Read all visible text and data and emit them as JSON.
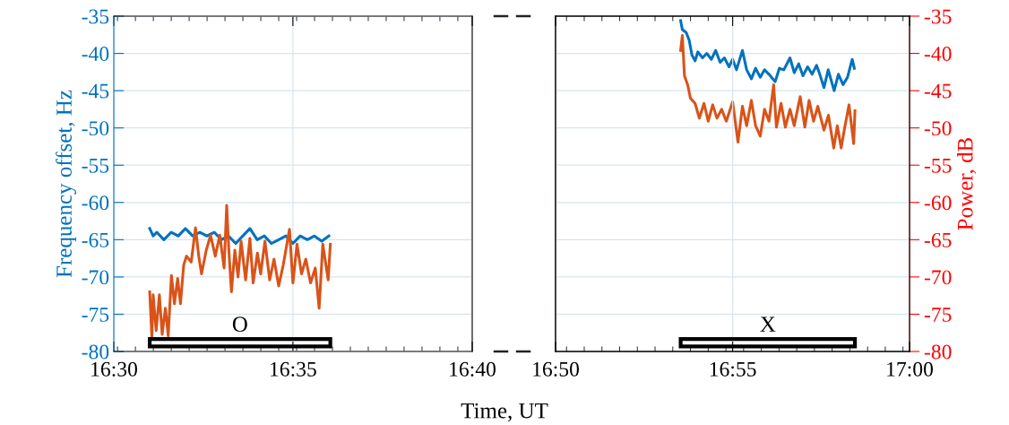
{
  "chart_data": [
    {
      "type": "line",
      "ylabel": "Frequency offset, Hz",
      "xlabel": "Time, UT",
      "xlim": [
        16.5,
        16.6667
      ],
      "xticks": [
        {
          "value": 16.5,
          "label": "16:30"
        },
        {
          "value": 16.5833,
          "label": "16:35"
        },
        {
          "value": 16.6667,
          "label": "16:40"
        }
      ],
      "ylim": [
        -80,
        -35
      ],
      "yticks": [
        -80,
        -75,
        -70,
        -65,
        -60,
        -55,
        -50,
        -45,
        -40,
        -35
      ],
      "grid": true,
      "line_style": "solid",
      "annotations": [
        "O"
      ],
      "series": [
        {
          "color": "#0072bd",
          "x": [
            16.5167,
            16.5183,
            16.52,
            16.5233,
            16.5267,
            16.53,
            16.5333,
            16.5367,
            16.54,
            16.5433,
            16.5467,
            16.55,
            16.5533,
            16.5567,
            16.56,
            16.5633,
            16.5667,
            16.57,
            16.5733,
            16.5767,
            16.58,
            16.5833,
            16.5867,
            16.59,
            16.5933,
            16.5967,
            16.6
          ],
          "values": [
            -63.5,
            -64.5,
            -64,
            -65,
            -64,
            -64.5,
            -63.5,
            -64.5,
            -64,
            -64.5,
            -64,
            -65,
            -64.5,
            -65.5,
            -64.5,
            -63.5,
            -65,
            -64.5,
            -65.5,
            -65,
            -64.5,
            -65.5,
            -64.5,
            -65,
            -64.5,
            -65.2,
            -64.5
          ]
        },
        {
          "color": "#d95319",
          "x": [
            16.5167,
            16.5177,
            16.5183,
            16.5197,
            16.5212,
            16.5225,
            16.524,
            16.5253,
            16.5268,
            16.5282,
            16.5297,
            16.531,
            16.5325,
            16.5338,
            16.536,
            16.538,
            16.5395,
            16.5408,
            16.543,
            16.545,
            16.5472,
            16.5493,
            16.5513,
            16.5525,
            16.5535,
            16.5547,
            16.5563,
            16.5578,
            16.5592,
            16.5613,
            16.5633,
            16.5648,
            16.5668,
            16.5683,
            16.5703,
            16.5725,
            16.5745,
            16.5767,
            16.5788,
            16.5817,
            16.5833,
            16.5852,
            16.5873,
            16.5893,
            16.5915,
            16.5937,
            16.5955,
            16.5972,
            16.5997,
            16.6007
          ],
          "values": [
            -72,
            -78.1,
            -72.4,
            -77.2,
            -72.4,
            -77.7,
            -74.2,
            -77.9,
            -69.8,
            -73.6,
            -70.2,
            -73.6,
            -68.4,
            -67.2,
            -68,
            -63.4,
            -67.2,
            -69.6,
            -66.4,
            -64.4,
            -67.2,
            -64.4,
            -68.8,
            -60.4,
            -66.4,
            -72,
            -66.4,
            -70,
            -65.2,
            -70.4,
            -64.8,
            -70.8,
            -66.8,
            -69.6,
            -65.2,
            -70.4,
            -67.6,
            -71.2,
            -68.4,
            -63.6,
            -70.8,
            -65.6,
            -69.6,
            -67.6,
            -70.8,
            -68.8,
            -74.2,
            -65.6,
            -70.4,
            -65.6
          ]
        }
      ]
    },
    {
      "type": "line",
      "y2label": "Power, dB",
      "xlim": [
        16.8333,
        17
      ],
      "xticks": [
        {
          "value": 16.8333,
          "label": "16:50"
        },
        {
          "value": 16.9167,
          "label": "16:55"
        },
        {
          "value": 17,
          "label": "17:00"
        }
      ],
      "y2lim": [
        -80,
        -35
      ],
      "y2ticks": [
        -80,
        -75,
        -70,
        -65,
        -60,
        -55,
        -50,
        -45,
        -40,
        -35
      ],
      "grid": true,
      "line_style": "solid",
      "annotations": [
        "X"
      ],
      "series": [
        {
          "color": "#0072bd",
          "axis": "y2",
          "x": [
            16.8922,
            16.893,
            16.8948,
            16.8962,
            16.8975,
            16.899,
            16.9003,
            16.9025,
            16.9045,
            16.9067,
            16.9087,
            16.9108,
            16.9128,
            16.915,
            16.9167,
            16.9185,
            16.9213,
            16.9233,
            16.9255,
            16.9275,
            16.9297,
            16.9317,
            16.9338,
            16.9367,
            16.9387,
            16.9408,
            16.9437,
            16.9457,
            16.9478,
            16.9498,
            16.952,
            16.9541,
            16.9562,
            16.9575,
            16.9597,
            16.9617,
            16.9645,
            16.9665,
            16.9687,
            16.9708,
            16.973,
            16.974
          ],
          "values": [
            -35.6,
            -36.8,
            -37.2,
            -38.2,
            -40.2,
            -41,
            -39.8,
            -40.6,
            -40,
            -40.8,
            -39.6,
            -41.2,
            -40.6,
            -41.8,
            -40.8,
            -42.2,
            -39.6,
            -42.2,
            -43.4,
            -42,
            -43.2,
            -42.2,
            -42.8,
            -43.8,
            -42,
            -42.2,
            -40.6,
            -42.6,
            -41.4,
            -43,
            -41.8,
            -42.8,
            -41.6,
            -42.6,
            -44.6,
            -42.2,
            -45,
            -42.8,
            -44.2,
            -43.2,
            -40.8,
            -42
          ]
        },
        {
          "color": "#d95319",
          "axis": "y2",
          "x": [
            16.8922,
            16.893,
            16.894,
            16.8955,
            16.8968,
            16.899,
            16.901,
            16.9032,
            16.9052,
            16.9073,
            16.9093,
            16.9115,
            16.9137,
            16.9167,
            16.9192,
            16.9213,
            16.9233,
            16.9255,
            16.9275,
            16.9297,
            16.9317,
            16.9338,
            16.936,
            16.9373,
            16.9395,
            16.9415,
            16.9437,
            16.9457,
            16.9485,
            16.9507,
            16.9527,
            16.9548,
            16.9568,
            16.9597,
            16.9618,
            16.9643,
            16.966,
            16.9678,
            16.9695,
            16.9715,
            16.9737,
            16.9743
          ],
          "values": [
            -39.6,
            -37.6,
            -43,
            -44.2,
            -46,
            -46.7,
            -48.7,
            -46.7,
            -49.1,
            -46.9,
            -48.7,
            -47.5,
            -49.1,
            -46.5,
            -51.9,
            -47.1,
            -49.7,
            -46.3,
            -49.7,
            -51.1,
            -47.5,
            -49.1,
            -44.2,
            -49.9,
            -46.7,
            -49.9,
            -47.5,
            -49.7,
            -45.8,
            -49.9,
            -46.3,
            -49.1,
            -47.1,
            -50.3,
            -48.3,
            -52.7,
            -49.7,
            -52.7,
            -49.9,
            -46.9,
            -52.1,
            -47.7
          ]
        }
      ]
    }
  ]
}
